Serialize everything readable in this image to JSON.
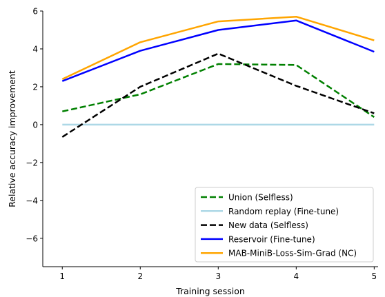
{
  "chart_data": {
    "type": "line",
    "title": "",
    "xlabel": "Training session",
    "ylabel": "Relative accuracy improvement",
    "x": [
      1,
      2,
      3,
      4,
      5
    ],
    "xticks": [
      "1",
      "2",
      "3",
      "4",
      "5"
    ],
    "yticks": [
      "6",
      "4",
      "2",
      "0",
      "−2",
      "−4",
      "−6"
    ],
    "ytick_values": [
      6,
      4,
      2,
      0,
      -2,
      -4,
      -6
    ],
    "xlim": [
      0.75,
      5.05
    ],
    "ylim": [
      -7.5,
      6
    ],
    "grid": false,
    "legend_position": "lower-right",
    "series": [
      {
        "name": "Union (Selfless)",
        "values": [
          0.7,
          1.6,
          3.2,
          3.15,
          0.4
        ],
        "color": "#008000",
        "dash": "dashed"
      },
      {
        "name": "Random replay (Fine-tune)",
        "values": [
          0,
          0,
          0,
          0,
          0
        ],
        "color": "#add8e6",
        "dash": "solid"
      },
      {
        "name": "New data (Selfless)",
        "values": [
          -0.65,
          2.0,
          3.75,
          2.05,
          0.6
        ],
        "color": "#000000",
        "dash": "dashed"
      },
      {
        "name": "Reservoir (Fine-tune)",
        "values": [
          2.3,
          3.9,
          5.0,
          5.5,
          3.85
        ],
        "color": "#0000ff",
        "dash": "solid"
      },
      {
        "name": "MAB-MiniB-Loss-Sim-Grad (NC)",
        "values": [
          2.4,
          4.35,
          5.45,
          5.7,
          4.45
        ],
        "color": "#ffa500",
        "dash": "solid"
      }
    ]
  }
}
